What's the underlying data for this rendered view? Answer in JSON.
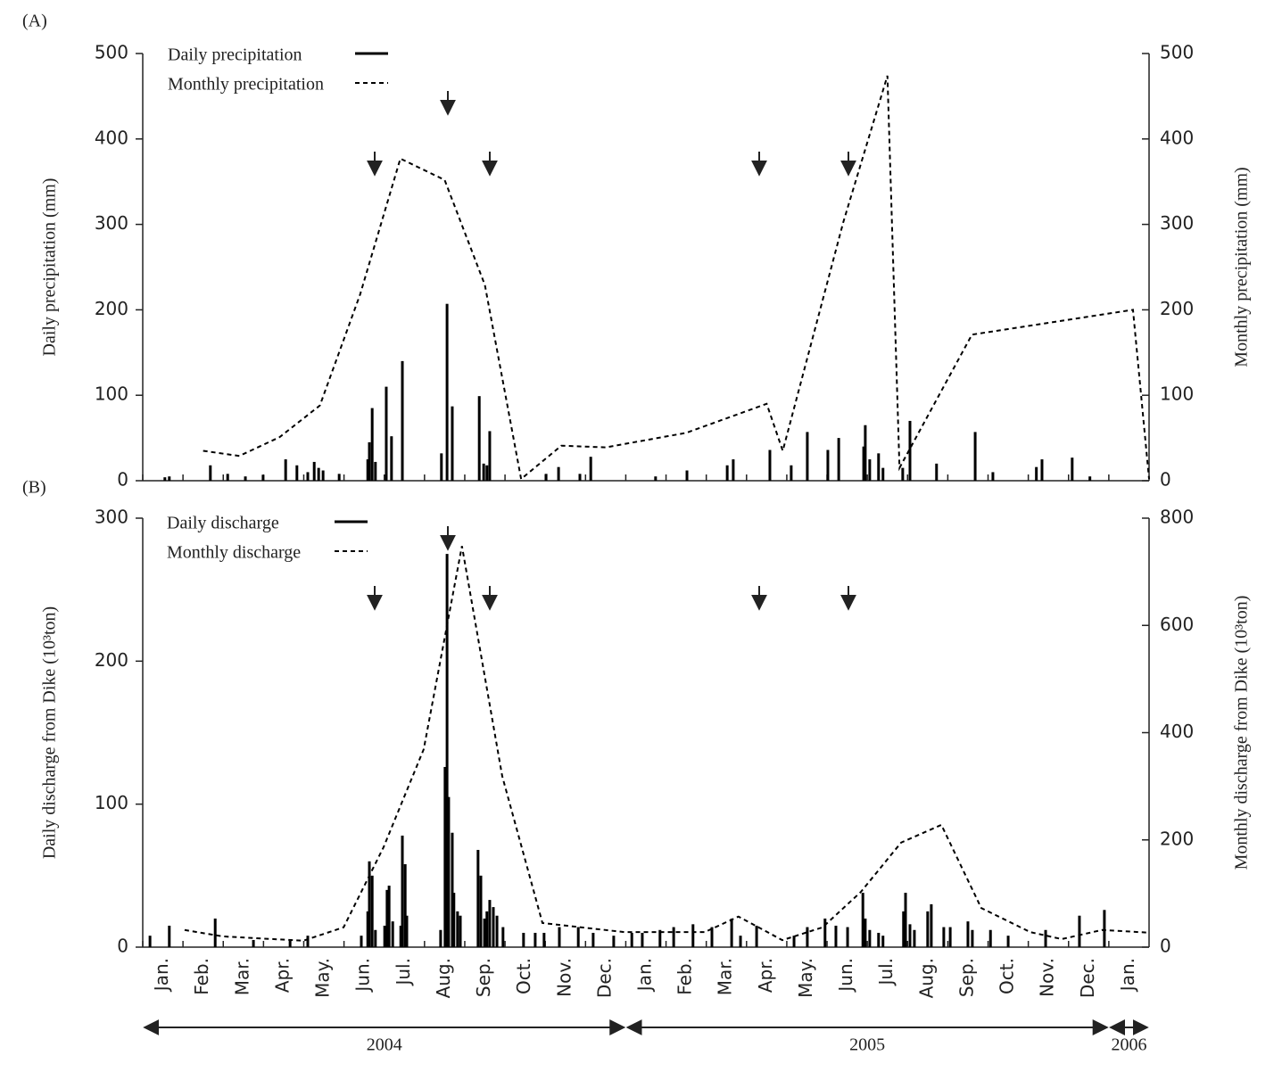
{
  "chart_data": [
    {
      "type": "bar",
      "title": "(A)",
      "y_label": "Daily precipitation (mm)",
      "y2_label": "Monthly precipitation (mm)",
      "xlim": [
        0,
        25
      ],
      "ylim": [
        0,
        500
      ],
      "yticks": [
        0,
        100,
        200,
        300,
        400,
        500
      ],
      "y2lim": [
        0,
        500
      ],
      "y2ticks": [
        0,
        100,
        200,
        300,
        400,
        500
      ],
      "series": [
        {
          "name": "Daily precipitation",
          "color": "#000000",
          "style": "bar",
          "axis": "y",
          "x": [
            0.55,
            0.66,
            1.68,
            2.11,
            2.55,
            2.99,
            3.55,
            3.83,
            4.1,
            4.26,
            4.37,
            4.48,
            4.88,
            5.59,
            5.63,
            5.7,
            5.78,
            6.05,
            6.18,
            6.45,
            7.42,
            7.56,
            7.69,
            8.36,
            8.47,
            8.55,
            8.62,
            10.02,
            10.33,
            10.86,
            11.13,
            12.74,
            13.52,
            14.52,
            14.67,
            15.58,
            16.11,
            16.51,
            17.02,
            17.29,
            17.91,
            17.95,
            18.06,
            18.28,
            18.39,
            18.88,
            19.06,
            19.72,
            20.68,
            21.12,
            22.2,
            22.34,
            23.09,
            23.53
          ],
          "values": [
            4,
            5,
            18,
            8,
            5,
            7,
            25,
            18,
            10,
            22,
            15,
            12,
            8,
            25,
            45,
            85,
            22,
            110,
            52,
            140,
            32,
            207,
            87,
            99,
            20,
            18,
            58,
            8,
            16,
            8,
            28,
            5,
            12,
            18,
            25,
            36,
            18,
            57,
            36,
            50,
            40,
            65,
            25,
            32,
            15,
            15,
            70,
            20,
            57,
            10,
            16,
            25,
            27,
            5
          ]
        },
        {
          "name": "Monthly precipitation",
          "color": "#000000",
          "style": "dashed",
          "axis": "y2",
          "x": [
            1.5,
            2.4,
            3.4,
            4.4,
            5.4,
            6.4,
            7.5,
            8.5,
            9.4,
            10.4,
            11.5,
            13.5,
            15.5,
            15.9,
            17.4,
            18.5,
            18.8,
            20.6,
            24.6,
            25
          ],
          "values": [
            35,
            29,
            51,
            88,
            218,
            377,
            352,
            229,
            2,
            41,
            39,
            56,
            90,
            35,
            302,
            474,
            15,
            171,
            200,
            2
          ]
        }
      ]
    },
    {
      "type": "bar",
      "title": "(B)",
      "y_label": "Daily discharge from Dike (10³ton)",
      "y2_label": "Monthly discharge from Dike (10³ton)",
      "xlim": [
        0,
        25
      ],
      "ylim": [
        0,
        300
      ],
      "yticks": [
        0,
        100,
        200,
        300
      ],
      "y2lim": [
        0,
        800
      ],
      "y2ticks": [
        0,
        200,
        400,
        600,
        800
      ],
      "categories": [
        "Jan.",
        "Feb.",
        "Mar.",
        "Apr.",
        "May.",
        "Jun.",
        "Jul.",
        "Aug.",
        "Sep.",
        "Oct.",
        "Nov.",
        "Dec.",
        "Jan.",
        "Feb.",
        "Mar.",
        "Apr.",
        "May.",
        "Jun.",
        "Jul.",
        "Aug.",
        "Sep.",
        "Oct.",
        "Nov.",
        "Dec.",
        "Jan."
      ],
      "x_groups": [
        {
          "label": "2004",
          "range": [
            0,
            12
          ]
        },
        {
          "label": "2005",
          "range": [
            12,
            24
          ]
        },
        {
          "label": "2006",
          "range": [
            24,
            25
          ]
        }
      ],
      "series": [
        {
          "name": "Daily discharge",
          "color": "#000000",
          "style": "bar",
          "axis": "y",
          "x": [
            0.18,
            0.66,
            1.8,
            2.75,
            3.66,
            4.1,
            5.43,
            5.59,
            5.63,
            5.7,
            5.78,
            6.01,
            6.07,
            6.12,
            6.21,
            6.41,
            6.45,
            6.52,
            6.56,
            7.4,
            7.51,
            7.56,
            7.6,
            7.69,
            7.73,
            7.82,
            7.89,
            8.33,
            8.4,
            8.49,
            8.55,
            8.62,
            8.71,
            8.8,
            8.95,
            9.46,
            9.75,
            9.97,
            10.35,
            10.82,
            11.19,
            11.7,
            12.15,
            12.41,
            12.85,
            13.19,
            13.67,
            14.14,
            14.63,
            14.85,
            15.25,
            16.18,
            16.51,
            16.95,
            17.22,
            17.51,
            17.89,
            17.95,
            18.06,
            18.28,
            18.39,
            18.9,
            18.95,
            19.06,
            19.17,
            19.5,
            19.59,
            19.9,
            20.06,
            20.5,
            20.61,
            21.06,
            21.5,
            22.43,
            23.27,
            23.89
          ],
          "values": [
            8,
            15,
            20,
            5,
            5,
            8,
            8,
            25,
            60,
            50,
            12,
            15,
            40,
            43,
            18,
            15,
            78,
            58,
            22,
            12,
            126,
            275,
            105,
            80,
            38,
            25,
            22,
            68,
            50,
            20,
            25,
            33,
            28,
            22,
            14,
            10,
            10,
            10,
            14,
            14,
            10,
            8,
            10,
            10,
            12,
            14,
            16,
            14,
            20,
            8,
            15,
            8,
            14,
            20,
            15,
            14,
            38,
            20,
            12,
            10,
            8,
            25,
            38,
            16,
            12,
            25,
            30,
            14,
            14,
            18,
            12,
            12,
            8,
            12,
            22,
            26
          ]
        },
        {
          "name": "Monthly discharge",
          "color": "#000000",
          "style": "dashed",
          "axis": "y2",
          "x": [
            1.04,
            1.99,
            3.99,
            4.99,
            5.98,
            6.98,
            7.93,
            8.93,
            9.93,
            11.97,
            13.96,
            14.8,
            15.89,
            16.89,
            17.84,
            18.84,
            19.84,
            20.83,
            22.05,
            22.83,
            23.83,
            25
          ],
          "values": [
            32,
            20,
            12,
            37,
            186,
            369,
            748,
            319,
            45,
            28,
            28,
            57,
            13,
            37,
            103,
            195,
            228,
            73,
            28,
            15,
            32,
            27
          ]
        }
      ]
    }
  ]
}
